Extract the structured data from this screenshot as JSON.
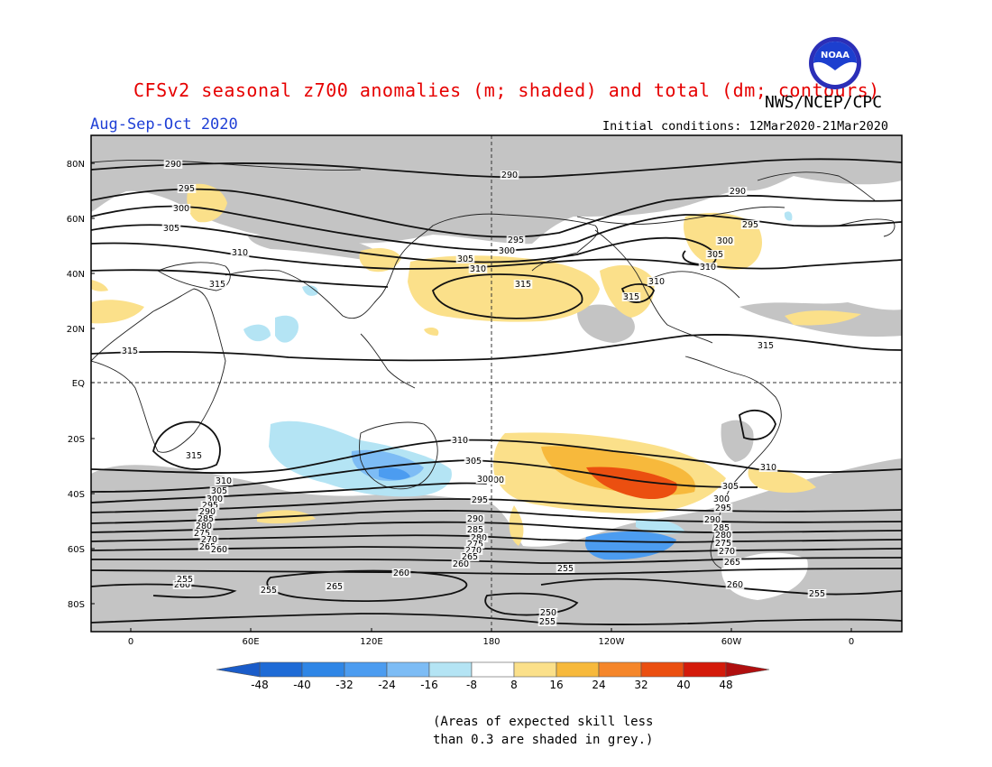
{
  "header": {
    "title": "CFSv2 seasonal z700 anomalies (m; shaded) and total (dm; contours)",
    "agency": "NWS/NCEP/CPC",
    "season": "Aug-Sep-Oct 2020",
    "initial_conditions": "Initial conditions: 12Mar2020-21Mar2020"
  },
  "logo": {
    "icon": "noaa-logo-icon",
    "text": "NOAA"
  },
  "axes": {
    "lat_labels": [
      "80N",
      "60N",
      "40N",
      "20N",
      "EQ",
      "20S",
      "40S",
      "60S",
      "80S"
    ],
    "lon_labels": [
      "0",
      "60E",
      "120E",
      "180",
      "120W",
      "60W",
      "0"
    ]
  },
  "contour_labels": {
    "north": [
      "290",
      "290",
      "295",
      "300",
      "305",
      "300",
      "295",
      "305",
      "310",
      "310",
      "315",
      "315",
      "315",
      "290",
      "295",
      "300",
      "305",
      "310",
      "310",
      "315",
      "315"
    ],
    "south": [
      "310",
      "305",
      "310",
      "300",
      "315",
      "310",
      "305",
      "300",
      "295",
      "290",
      "285",
      "280",
      "275",
      "270",
      "265",
      "260",
      "300",
      "295",
      "290",
      "285",
      "280",
      "275",
      "270",
      "265",
      "260",
      "305",
      "300",
      "295",
      "290",
      "285",
      "280",
      "275",
      "270",
      "265",
      "260",
      "255",
      "260",
      "255",
      "265",
      "260",
      "255",
      "250",
      "255",
      "255"
    ]
  },
  "colorbar": {
    "ticks": [
      "-48",
      "-40",
      "-32",
      "-24",
      "-16",
      "-8",
      "8",
      "16",
      "24",
      "32",
      "40",
      "48"
    ],
    "colors": [
      "#1e6bd6",
      "#2f86e6",
      "#4c9cf0",
      "#7dbcf5",
      "#b4e4f4",
      "#ffffff",
      "#fbe08a",
      "#f7b93c",
      "#f5862a",
      "#eb4f10",
      "#d41a0a"
    ],
    "end_left": "#1a5cc9",
    "end_right": "#b00f0f"
  },
  "note": {
    "line1": "(Areas of expected skill less",
    "line2": "than 0.3 are shaded in grey.)"
  },
  "colors": {
    "title": "#e60000",
    "season": "#1f3fd6",
    "grey": "#c4c4c4"
  }
}
